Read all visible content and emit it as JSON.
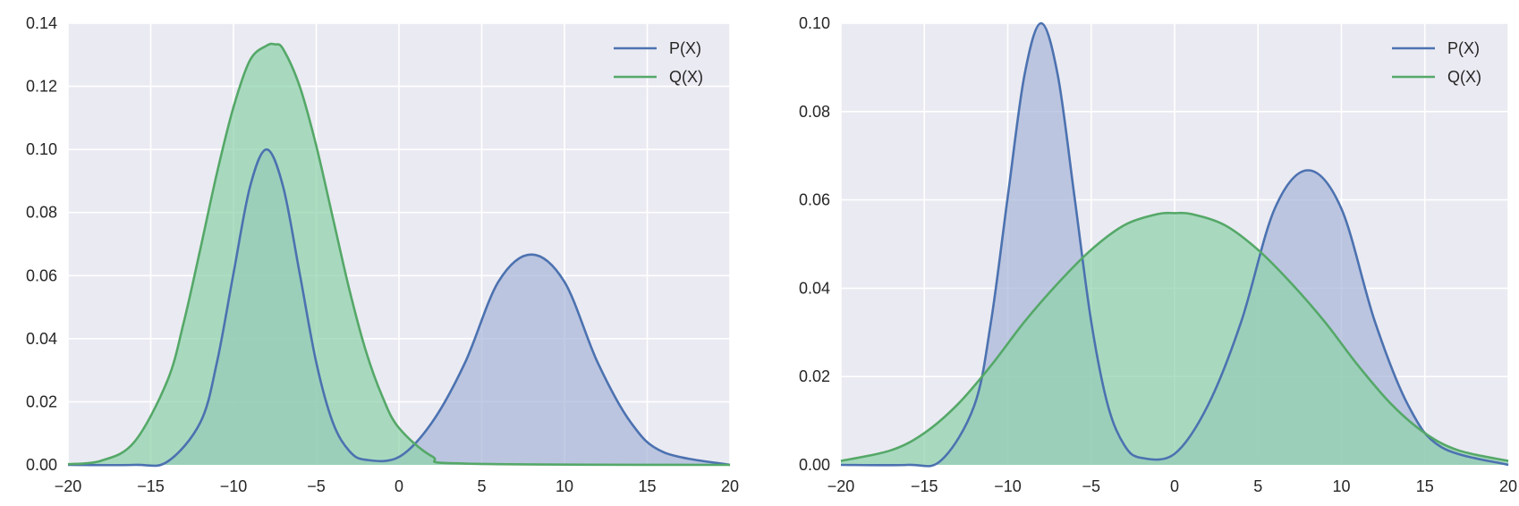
{
  "chart_data": [
    {
      "type": "area",
      "title": "",
      "xlabel": "",
      "ylabel": "",
      "xlim": [
        -20,
        20
      ],
      "ylim": [
        0,
        0.14
      ],
      "x_ticks": [
        "−20",
        "−15",
        "−10",
        "−5",
        "0",
        "5",
        "10",
        "15",
        "20"
      ],
      "y_ticks": [
        "0.00",
        "0.02",
        "0.04",
        "0.06",
        "0.08",
        "0.10",
        "0.12",
        "0.14"
      ],
      "grid": true,
      "legend_position": "top-right",
      "series": [
        {
          "name": "P(X)",
          "color": "#4c72b0",
          "fill": "#a9b7d8",
          "x": [
            -20,
            -16,
            -14,
            -12,
            -11,
            -10,
            -9,
            -8,
            -7,
            -6,
            -5,
            -4,
            -3,
            -2,
            0,
            2,
            4,
            6,
            8,
            10,
            12,
            14,
            16,
            20
          ],
          "y": [
            0.0,
            0.0,
            0.001,
            0.0135,
            0.0325,
            0.0607,
            0.0882,
            0.1,
            0.0882,
            0.0607,
            0.0325,
            0.0135,
            0.0044,
            0.0016,
            0.0025,
            0.0135,
            0.0325,
            0.058,
            0.0667,
            0.058,
            0.0325,
            0.0135,
            0.004,
            0.0
          ]
        },
        {
          "name": "Q(X)",
          "color": "#55a868",
          "fill": "#8fd3ab",
          "x": [
            -20,
            -18,
            -16,
            -14,
            -13,
            -12,
            -11,
            -10,
            -9,
            -8,
            -7.5,
            -7,
            -6,
            -5,
            -4,
            -3,
            -2,
            -1,
            0,
            2,
            4,
            20
          ],
          "y": [
            0.0002,
            0.0013,
            0.0072,
            0.0266,
            0.0453,
            0.0685,
            0.0925,
            0.1134,
            0.1283,
            0.1329,
            0.1333,
            0.1318,
            0.12,
            0.1012,
            0.0784,
            0.0556,
            0.0361,
            0.0216,
            0.0117,
            0.0027,
            0.0004,
            0.0
          ]
        }
      ]
    },
    {
      "type": "area",
      "title": "",
      "xlabel": "",
      "ylabel": "",
      "xlim": [
        -20,
        20
      ],
      "ylim": [
        0,
        0.1
      ],
      "x_ticks": [
        "−20",
        "−15",
        "−10",
        "−5",
        "0",
        "5",
        "10",
        "15",
        "20"
      ],
      "y_ticks": [
        "0.00",
        "0.02",
        "0.04",
        "0.06",
        "0.08",
        "0.10"
      ],
      "grid": true,
      "legend_position": "top-right",
      "series": [
        {
          "name": "P(X)",
          "color": "#4c72b0",
          "fill": "#a9b7d8",
          "x": [
            -20,
            -16,
            -14,
            -12,
            -11,
            -10,
            -9,
            -8,
            -7,
            -6,
            -5,
            -4,
            -3,
            -2,
            0,
            2,
            4,
            6,
            8,
            10,
            12,
            14,
            16,
            20
          ],
          "y": [
            0.0,
            0.0,
            0.001,
            0.0135,
            0.0325,
            0.0607,
            0.0882,
            0.1,
            0.0882,
            0.0607,
            0.0325,
            0.0135,
            0.0044,
            0.0016,
            0.0025,
            0.0135,
            0.0325,
            0.058,
            0.0667,
            0.058,
            0.0325,
            0.0135,
            0.004,
            0.0
          ]
        },
        {
          "name": "Q(X)",
          "color": "#55a868",
          "fill": "#8fd3ab",
          "x": [
            -20,
            -17,
            -15,
            -13,
            -11,
            -9,
            -7,
            -5,
            -3,
            -1,
            0,
            1,
            3,
            5,
            7,
            9,
            11,
            13,
            15,
            17,
            20
          ],
          "y": [
            0.0009,
            0.0033,
            0.0072,
            0.0137,
            0.0225,
            0.0324,
            0.0411,
            0.0487,
            0.0543,
            0.0568,
            0.057,
            0.0568,
            0.0543,
            0.0487,
            0.0411,
            0.0324,
            0.0225,
            0.0137,
            0.0072,
            0.0033,
            0.0009
          ]
        }
      ]
    }
  ]
}
